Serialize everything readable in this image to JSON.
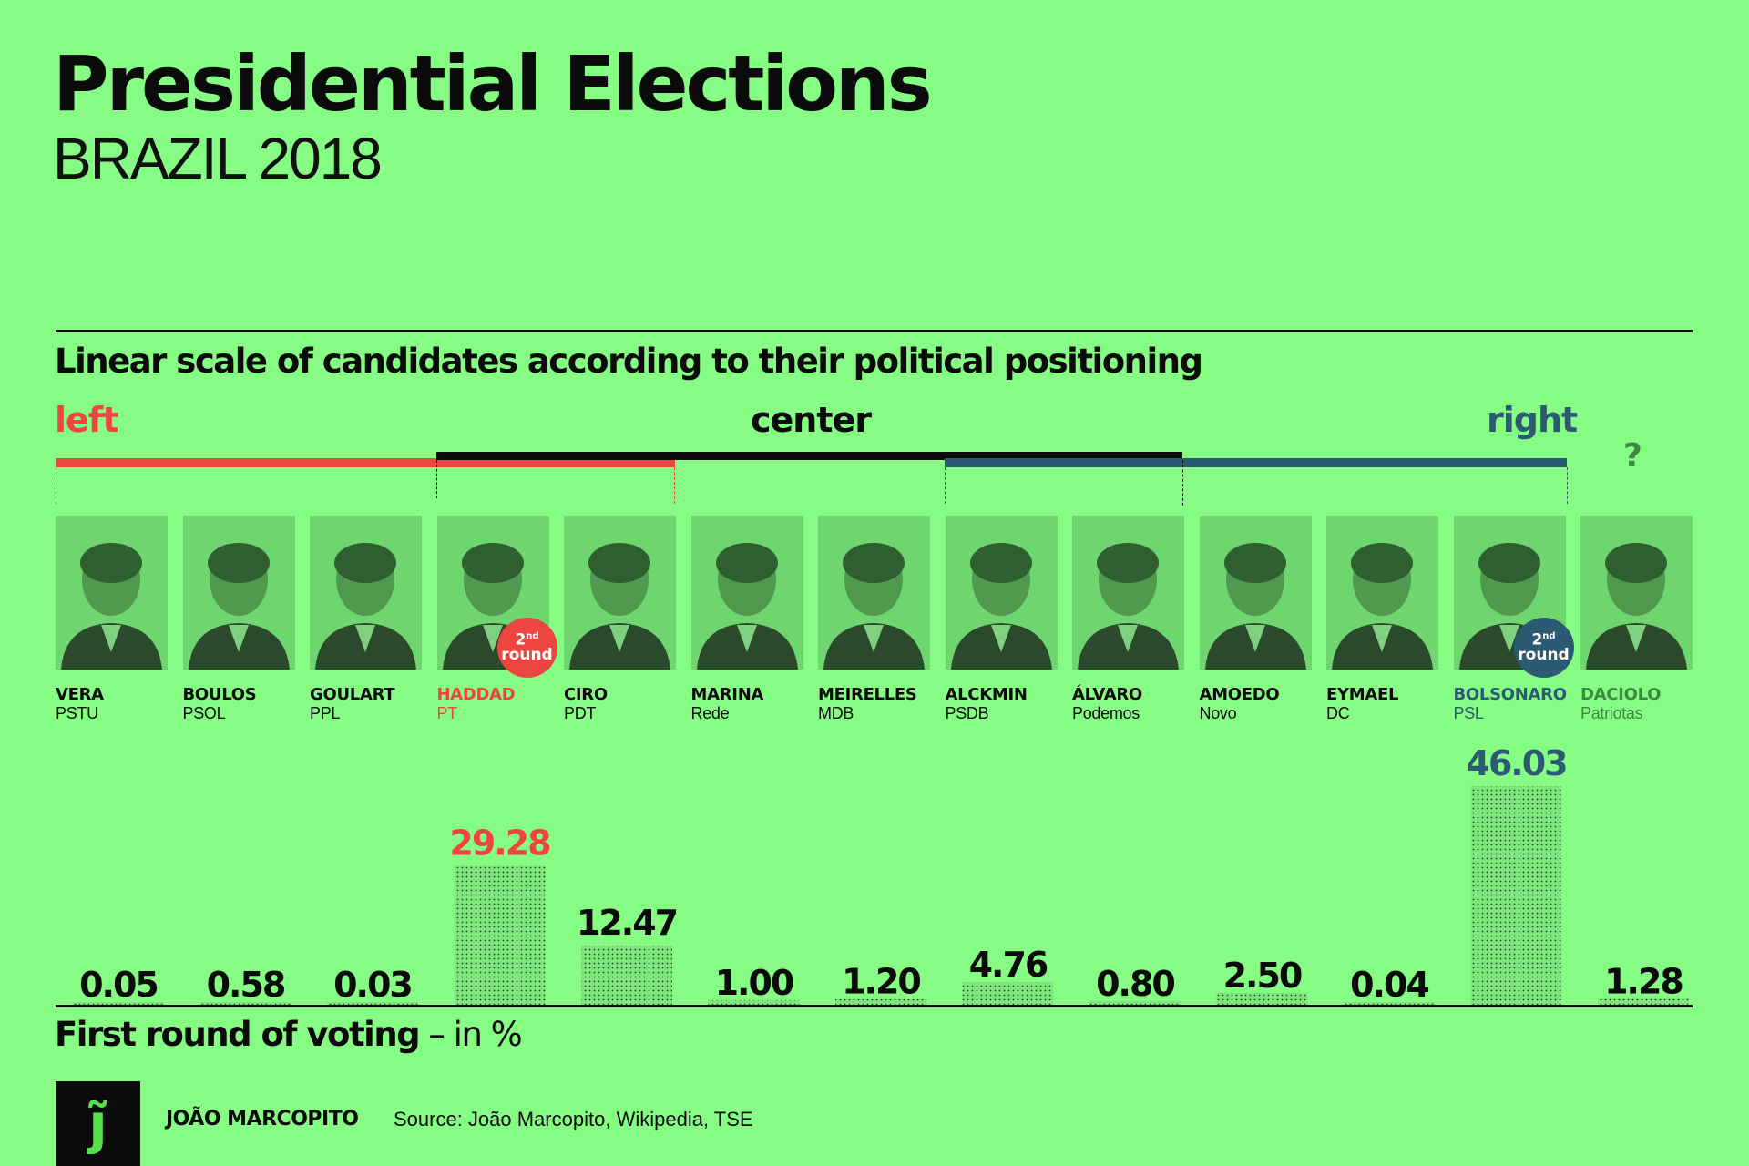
{
  "header": {
    "title": "Presidential Elections",
    "subtitle": "BRAZIL 2018"
  },
  "scale": {
    "heading": "Linear scale of candidates according to their political positioning",
    "left_label": "left",
    "center_label": "center",
    "right_label": "right",
    "unknown_label": "?",
    "colors": {
      "left": "#ef4541",
      "center": "#0b0b0b",
      "right": "#2b5a72",
      "unknown": "#3c8a3f"
    }
  },
  "badge": {
    "ordinal": "2",
    "suffix": "nd",
    "word": "round"
  },
  "candidates": [
    {
      "name": "VERA",
      "party": "PSTU",
      "group": "left"
    },
    {
      "name": "BOULOS",
      "party": "PSOL",
      "group": "left"
    },
    {
      "name": "GOULART",
      "party": "PPL",
      "group": "left"
    },
    {
      "name": "HADDAD",
      "party": "PT",
      "group": "left",
      "second_round": true
    },
    {
      "name": "CIRO",
      "party": "PDT",
      "group": "center"
    },
    {
      "name": "MARINA",
      "party": "Rede",
      "group": "center"
    },
    {
      "name": "MEIRELLES",
      "party": "MDB",
      "group": "center"
    },
    {
      "name": "ALCKMIN",
      "party": "PSDB",
      "group": "center"
    },
    {
      "name": "ÁLVARO",
      "party": "Podemos",
      "group": "center"
    },
    {
      "name": "AMOEDO",
      "party": "Novo",
      "group": "right"
    },
    {
      "name": "EYMAEL",
      "party": "DC",
      "group": "right"
    },
    {
      "name": "BOLSONARO",
      "party": "PSL",
      "group": "right",
      "second_round": true
    },
    {
      "name": "DACIOLO",
      "party": "Patriotas",
      "group": "unknown"
    }
  ],
  "chart_data": {
    "type": "bar",
    "title": "First round of voting",
    "subtitle": "in %",
    "categories": [
      "VERA",
      "BOULOS",
      "GOULART",
      "HADDAD",
      "CIRO",
      "MARINA",
      "MEIRELLES",
      "ALCKMIN",
      "ÁLVARO",
      "AMOEDO",
      "EYMAEL",
      "BOLSONARO",
      "DACIOLO"
    ],
    "values": [
      0.05,
      0.58,
      0.03,
      29.28,
      12.47,
      1.0,
      1.2,
      4.76,
      0.8,
      2.5,
      0.04,
      46.03,
      1.28
    ],
    "labels": [
      "0.05",
      "0.58",
      "0.03",
      "29.28",
      "12.47",
      "1.00",
      "1.20",
      "4.76",
      "0.80",
      "2.50",
      "0.04",
      "46.03",
      "1.28"
    ],
    "highlight": {
      "HADDAD": "#ef4541",
      "BOLSONARO": "#2b5a72"
    },
    "xlabel": "",
    "ylabel": "%",
    "ylim": [
      0,
      50
    ],
    "grid": false,
    "legend": "none"
  },
  "footer": {
    "vote_heading_bold": "First round of voting",
    "vote_heading_light": " – in %",
    "logo_glyph": "j̃",
    "author": "JOÃO MARCOPITO",
    "source": "Source: João Marcopito, Wikipedia, TSE"
  }
}
